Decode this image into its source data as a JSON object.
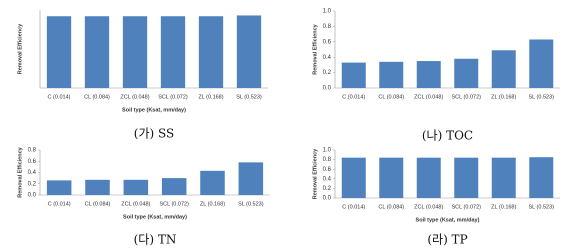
{
  "chart_data": [
    {
      "type": "bar",
      "caption": "(가) SS",
      "y_label": "Removal Efficiency",
      "x_label": "Soil type (Ksat, mm/day)",
      "categories": [
        "C (0.014)",
        "CL (0.084)",
        "ZCL (0.048)",
        "SCL (0.072)",
        "ZL (0.168)",
        "SL (0.523)"
      ],
      "values": [
        0.92,
        0.92,
        0.92,
        0.92,
        0.92,
        0.93
      ],
      "color": "#4f81bd",
      "ylim": [
        0,
        1
      ]
    },
    {
      "type": "bar",
      "caption": "(나) TOC",
      "y_label": "Removal Efficiency",
      "categories": [
        "C (0.014)",
        "CL (0.084)",
        "ZCL (0.048)",
        "SCL (0.072)",
        "ZL (0.168)",
        "SL (0.523)"
      ],
      "values": [
        0.33,
        0.34,
        0.35,
        0.38,
        0.49,
        0.63
      ],
      "color": "#4f81bd",
      "ylim": [
        0,
        1
      ],
      "yticks": [
        {
          "value": 0,
          "label": "0.0"
        },
        {
          "value": 0.2,
          "label": "0.2"
        },
        {
          "value": 0.4,
          "label": "0.4"
        },
        {
          "value": 0.6,
          "label": "0.6"
        },
        {
          "value": 0.8,
          "label": "0.8"
        },
        {
          "value": 1,
          "label": "1.0"
        }
      ]
    },
    {
      "type": "bar",
      "caption": "(다) TN",
      "y_label": "Removal Efficiency",
      "x_label": "Soil type (Ksat, mm/day)",
      "categories": [
        "C (0.014)",
        "CL (0.084)",
        "ZCL (0.048)",
        "SCL (0.072)",
        "ZL (0.168)",
        "SL (0.523)"
      ],
      "values": [
        0.26,
        0.27,
        0.27,
        0.3,
        0.43,
        0.58
      ],
      "color": "#4f81bd",
      "ylim": [
        0,
        0.8
      ],
      "yticks": [
        {
          "value": 0,
          "label": "0.0"
        },
        {
          "value": 0.2,
          "label": "0.2"
        },
        {
          "value": 0.4,
          "label": "0.4"
        },
        {
          "value": 0.6,
          "label": "0.6"
        },
        {
          "value": 0.8,
          "label": "0.8"
        }
      ]
    },
    {
      "type": "bar",
      "caption": "(라) TP",
      "y_label": "Removal Efficiency",
      "x_label": "Soil type (Ksat, mm/day)",
      "categories": [
        "C (0.014)",
        "CL (0.084)",
        "ZCL (0.048)",
        "SCL (0.072)",
        "ZL (0.168)",
        "SL (0.523)"
      ],
      "values": [
        0.84,
        0.84,
        0.84,
        0.84,
        0.84,
        0.85
      ],
      "color": "#4f81bd",
      "ylim": [
        0,
        1
      ],
      "yticks": [
        {
          "value": 0,
          "label": "0.0"
        },
        {
          "value": 0.2,
          "label": "0.2"
        },
        {
          "value": 0.4,
          "label": "0.4"
        },
        {
          "value": 0.6,
          "label": "0.6"
        },
        {
          "value": 0.8,
          "label": "0.8"
        },
        {
          "value": 1,
          "label": "1.0"
        }
      ]
    }
  ]
}
